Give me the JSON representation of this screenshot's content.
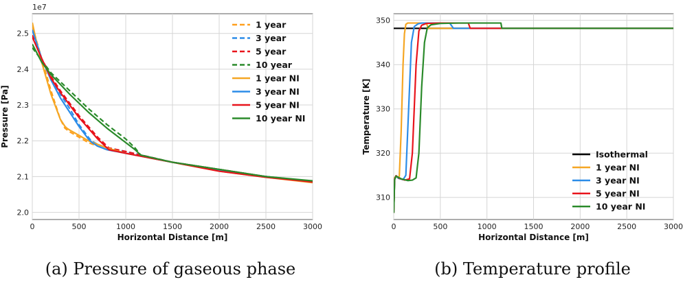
{
  "captions": {
    "a": "(a) Pressure of gaseous phase",
    "b": "(b) Temperature profile"
  },
  "chart_data": [
    {
      "type": "line",
      "xlabel": "Horizontal Distance [m]",
      "ylabel": "Pressure [Pa]",
      "y_exponent_label": "1e7",
      "xlim": [
        0,
        3000
      ],
      "ylim": [
        1.98,
        2.555
      ],
      "xticks": [
        0,
        500,
        1000,
        1500,
        2000,
        2500,
        3000
      ],
      "yticks": [
        2.0,
        2.1,
        2.2,
        2.3,
        2.4,
        2.5
      ],
      "ytick_labels": [
        "2.0",
        "2.1",
        "2.2",
        "2.3",
        "2.4",
        "2.5"
      ],
      "grid": true,
      "legend_position": "upper-right",
      "series": [
        {
          "name": "1 year",
          "color": "#ff9f1c",
          "dash": true,
          "x": [
            0,
            100,
            200,
            300,
            350,
            400,
            500,
            600,
            800,
            1000,
            1500,
            2000,
            2500,
            3000
          ],
          "y": [
            2.52,
            2.43,
            2.34,
            2.26,
            2.235,
            2.225,
            2.21,
            2.195,
            2.175,
            2.165,
            2.14,
            2.12,
            2.1,
            2.085
          ]
        },
        {
          "name": "3 year",
          "color": "#2b8ce8",
          "dash": true,
          "x": [
            0,
            100,
            200,
            300,
            400,
            500,
            600,
            630,
            700,
            800,
            1000,
            1500,
            2000,
            2500,
            3000
          ],
          "y": [
            2.51,
            2.43,
            2.375,
            2.33,
            2.29,
            2.245,
            2.21,
            2.2,
            2.19,
            2.18,
            2.17,
            2.14,
            2.12,
            2.1,
            2.085
          ]
        },
        {
          "name": "5 year",
          "color": "#e8131b",
          "dash": true,
          "x": [
            0,
            100,
            200,
            300,
            400,
            500,
            600,
            700,
            800,
            820,
            1000,
            1500,
            2000,
            2500,
            3000
          ],
          "y": [
            2.495,
            2.43,
            2.38,
            2.34,
            2.305,
            2.27,
            2.24,
            2.21,
            2.185,
            2.18,
            2.17,
            2.14,
            2.12,
            2.1,
            2.085
          ]
        },
        {
          "name": "10 year",
          "color": "#2a8a2a",
          "dash": true,
          "x": [
            0,
            100,
            200,
            400,
            600,
            800,
            1000,
            1100,
            1160,
            1500,
            2000,
            2500,
            3000
          ],
          "y": [
            2.46,
            2.425,
            2.39,
            2.34,
            2.29,
            2.245,
            2.205,
            2.18,
            2.16,
            2.14,
            2.12,
            2.1,
            2.087
          ]
        },
        {
          "name": "1 year NI",
          "color": "#f5a623",
          "dash": false,
          "x": [
            0,
            50,
            100,
            200,
            300,
            350,
            370,
            400,
            500,
            600,
            800,
            1000,
            1500,
            2000,
            2500,
            3000
          ],
          "y": [
            2.53,
            2.47,
            2.42,
            2.33,
            2.26,
            2.24,
            2.235,
            2.23,
            2.215,
            2.2,
            2.18,
            2.165,
            2.14,
            2.115,
            2.098,
            2.083
          ]
        },
        {
          "name": "3 year NI",
          "color": "#2b8ce8",
          "dash": false,
          "x": [
            0,
            100,
            200,
            300,
            400,
            500,
            600,
            640,
            700,
            800,
            1000,
            1500,
            2000,
            2500,
            3000
          ],
          "y": [
            2.51,
            2.43,
            2.37,
            2.32,
            2.28,
            2.24,
            2.205,
            2.195,
            2.185,
            2.175,
            2.165,
            2.14,
            2.117,
            2.1,
            2.085
          ]
        },
        {
          "name": "5 year NI",
          "color": "#e8131b",
          "dash": false,
          "x": [
            0,
            100,
            200,
            300,
            400,
            500,
            600,
            700,
            800,
            820,
            1000,
            1500,
            2000,
            2500,
            3000
          ],
          "y": [
            2.49,
            2.43,
            2.375,
            2.335,
            2.3,
            2.265,
            2.235,
            2.205,
            2.18,
            2.175,
            2.165,
            2.14,
            2.115,
            2.098,
            2.085
          ]
        },
        {
          "name": "10 year NI",
          "color": "#2a8a2a",
          "dash": false,
          "x": [
            0,
            100,
            200,
            400,
            600,
            800,
            1000,
            1100,
            1160,
            1500,
            2000,
            2500,
            3000
          ],
          "y": [
            2.47,
            2.42,
            2.385,
            2.33,
            2.28,
            2.235,
            2.195,
            2.175,
            2.16,
            2.14,
            2.12,
            2.1,
            2.088
          ]
        }
      ]
    },
    {
      "type": "line",
      "xlabel": "Horizontal Distance [m]",
      "ylabel": "Temperature [K]",
      "xlim": [
        0,
        3000
      ],
      "ylim": [
        305,
        351.5
      ],
      "xticks": [
        0,
        500,
        1000,
        1500,
        2000,
        2500,
        3000
      ],
      "yticks": [
        310,
        320,
        330,
        340,
        350
      ],
      "ytick_labels": [
        "310",
        "320",
        "330",
        "340",
        "350"
      ],
      "grid": true,
      "legend_position": "lower-right",
      "series": [
        {
          "name": "Isothermal",
          "color": "#000000",
          "dash": false,
          "x": [
            0,
            3000
          ],
          "y": [
            348.2,
            348.2
          ]
        },
        {
          "name": "1 year NI",
          "color": "#f5a623",
          "dash": false,
          "x": [
            0,
            10,
            25,
            50,
            60,
            80,
            100,
            115,
            130,
            150,
            200,
            300,
            350,
            370,
            3000
          ],
          "y": [
            306.5,
            314.5,
            314.8,
            314.5,
            314.8,
            325,
            340,
            347,
            349.1,
            349.4,
            349.4,
            349.4,
            349.4,
            348.2,
            348.2
          ]
        },
        {
          "name": "3 year NI",
          "color": "#2b8ce8",
          "dash": false,
          "x": [
            0,
            10,
            25,
            50,
            100,
            130,
            160,
            190,
            220,
            260,
            300,
            400,
            600,
            640,
            3000
          ],
          "y": [
            306.5,
            314.2,
            314.9,
            314.3,
            314.0,
            315,
            330,
            345,
            348.6,
            349.2,
            349.4,
            349.4,
            349.4,
            348.2,
            348.2
          ]
        },
        {
          "name": "5 year NI",
          "color": "#e8131b",
          "dash": false,
          "x": [
            0,
            10,
            25,
            60,
            120,
            170,
            200,
            240,
            270,
            300,
            350,
            500,
            800,
            820,
            3000
          ],
          "y": [
            306.5,
            314.1,
            314.9,
            314.3,
            313.9,
            314.2,
            320,
            340,
            347.6,
            348.9,
            349.3,
            349.4,
            349.4,
            348.2,
            348.2
          ]
        },
        {
          "name": "10 year NI",
          "color": "#2a8a2a",
          "dash": false,
          "x": [
            0,
            10,
            25,
            80,
            150,
            200,
            240,
            270,
            300,
            330,
            360,
            400,
            500,
            700,
            1150,
            1160,
            3000
          ],
          "y": [
            306.5,
            314.0,
            314.8,
            314.2,
            313.8,
            313.9,
            314.4,
            320,
            335,
            345,
            348.3,
            349.0,
            349.3,
            349.4,
            349.4,
            348.2,
            348.2
          ]
        }
      ]
    }
  ]
}
